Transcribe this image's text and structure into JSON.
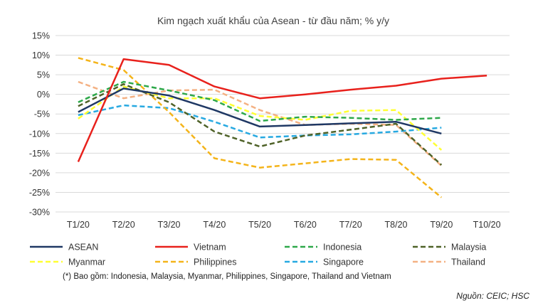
{
  "chart_data": {
    "type": "line",
    "title": "Kim ngạch xuất khẩu của Asean - từ đầu năm; % y/y",
    "categories": [
      "T1/20",
      "T2/20",
      "T3/20",
      "T4/20",
      "T5/20",
      "T6/20",
      "T7/20",
      "T8/20",
      "T9/20",
      "T10/20"
    ],
    "ylim": [
      -30,
      15
    ],
    "yticks": [
      15,
      10,
      5,
      0,
      -5,
      -10,
      -15,
      -20,
      -25,
      -30
    ],
    "ytick_labels": [
      "15%",
      "10%",
      "5%",
      "0%",
      "-5%",
      "-10%",
      "-15%",
      "-20%",
      "-25%",
      "-30%"
    ],
    "grid": true,
    "legend_position": "bottom",
    "series": [
      {
        "name": "ASEAN",
        "color": "#1f3864",
        "dash": "solid",
        "values": [
          -4.5,
          1.5,
          -0.3,
          -4.0,
          -8.2,
          -7.8,
          -7.4,
          -7.0,
          -10.0,
          null
        ]
      },
      {
        "name": "Vietnam",
        "color": "#e8211c",
        "dash": "solid",
        "values": [
          -17.2,
          9.0,
          7.5,
          2.0,
          -1.0,
          0.0,
          1.2,
          2.2,
          4.0,
          4.8
        ]
      },
      {
        "name": "Indonesia",
        "color": "#2ea84a",
        "dash": "dashed",
        "values": [
          -2.0,
          3.2,
          1.0,
          -1.5,
          -6.8,
          -5.7,
          -6.0,
          -6.5,
          -6.0,
          null
        ]
      },
      {
        "name": "Malaysia",
        "color": "#4f6228",
        "dash": "dashed",
        "values": [
          -3.0,
          2.6,
          -2.0,
          -9.5,
          -13.3,
          -10.5,
          -9.0,
          -7.5,
          -18.0,
          null
        ]
      },
      {
        "name": "Myanmar",
        "color": "#ffff33",
        "dash": "dashed",
        "values": [
          -6.2,
          2.0,
          -1.0,
          -1.0,
          -5.5,
          -6.5,
          -4.2,
          -4.0,
          -14.2,
          null
        ]
      },
      {
        "name": "Philippines",
        "color": "#f4b41a",
        "dash": "dashed",
        "values": [
          9.3,
          6.2,
          -4.5,
          -16.3,
          -18.7,
          -17.6,
          -16.5,
          -16.7,
          -26.3,
          null
        ]
      },
      {
        "name": "Singapore",
        "color": "#27a9e1",
        "dash": "dashed",
        "values": [
          -5.3,
          -2.8,
          -3.5,
          -7.0,
          -11.0,
          -10.5,
          -10.2,
          -9.5,
          -8.5,
          null
        ]
      },
      {
        "name": "Thailand",
        "color": "#f4b183",
        "dash": "dashed",
        "values": [
          3.2,
          -1.0,
          1.0,
          1.2,
          -4.0,
          -7.8,
          -7.5,
          -7.8,
          -18.2,
          null
        ]
      }
    ],
    "footnote": "(*) Bao gồm: Indonesia, Malaysia, Myanmar, Philippines, Singapore, Thailand and Vietnam",
    "source": "Nguồn: CEIC; HSC"
  }
}
